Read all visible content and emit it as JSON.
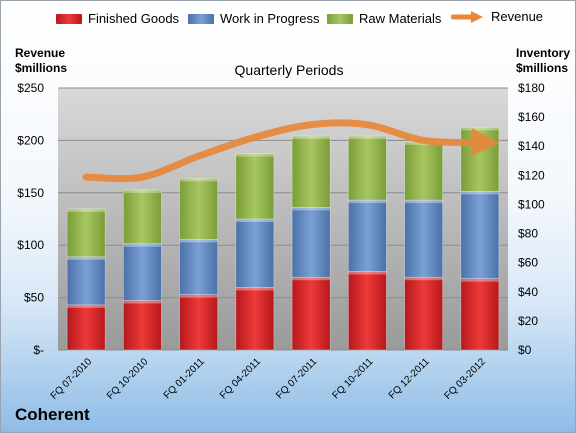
{
  "company": "Coherent",
  "chart_data": {
    "type": "bar",
    "stacked": true,
    "subtitle": "Quarterly Periods",
    "ylabel_left": "Revenue\n$millions",
    "ylabel_right": "Inventory\n$millions",
    "categories": [
      "FQ 07-2010",
      "FQ 10-2010",
      "FQ 01-2011",
      "FQ 04-2011",
      "FQ 07-2011",
      "FQ 10-2011",
      "FQ 12-2011",
      "FQ 03-2012"
    ],
    "series": [
      {
        "name": "Finished Goods",
        "axis": "right",
        "color": "#d7282a",
        "values": [
          31,
          34,
          38,
          43,
          50,
          54,
          50,
          49
        ]
      },
      {
        "name": "Work in Progress",
        "axis": "right",
        "color": "#5b84be",
        "values": [
          33,
          39,
          38,
          47,
          48,
          49,
          53,
          60
        ]
      },
      {
        "name": "Raw Materials",
        "axis": "right",
        "color": "#8fb347",
        "values": [
          33,
          37,
          42,
          45,
          49,
          44,
          40,
          44
        ]
      },
      {
        "name": "Revenue",
        "type": "line",
        "axis": "left",
        "color": "#e8873a",
        "values": [
          165,
          165,
          185,
          203,
          215,
          215,
          200,
          198
        ]
      }
    ],
    "ylim_left": [
      0,
      250
    ],
    "ylim_right": [
      0,
      180
    ],
    "yticks_left": [
      "$-",
      "$50",
      "$100",
      "$150",
      "$200",
      "$250"
    ],
    "yticks_right": [
      "$0",
      "$20",
      "$40",
      "$60",
      "$80",
      "$100",
      "$120",
      "$140",
      "$160",
      "$180"
    ],
    "grid": true,
    "legend": "top"
  }
}
